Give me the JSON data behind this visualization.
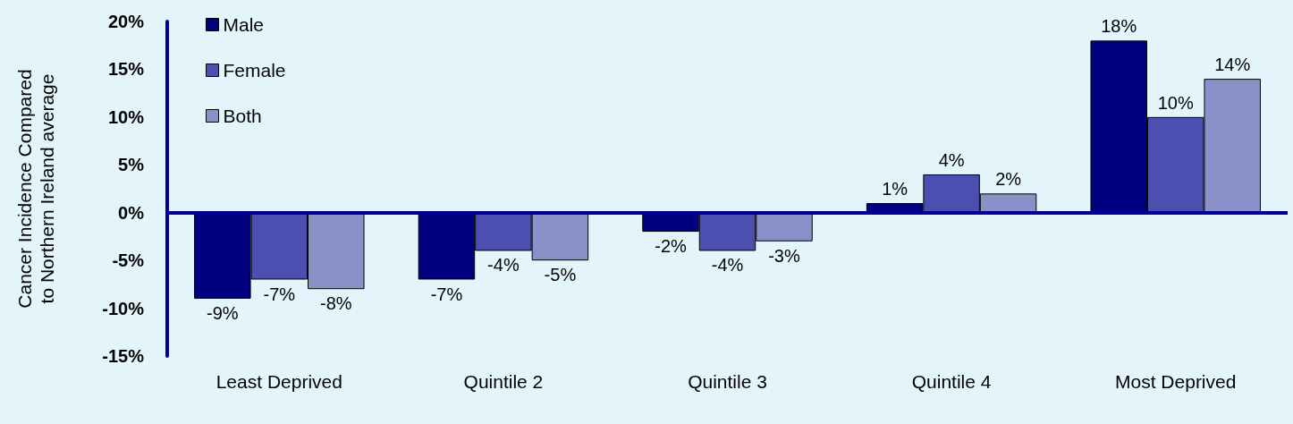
{
  "chart_data": {
    "type": "bar",
    "ylabel": "Cancer Incidence Compared to Northern Ireland average",
    "categories": [
      "Least Deprived",
      "Quintile 2",
      "Quintile 3",
      "Quintile 4",
      "Most Deprived"
    ],
    "series": [
      {
        "name": "Male",
        "color": "#000080",
        "values": [
          -9,
          -7,
          -2,
          1,
          18
        ],
        "value_labels": [
          "-9%",
          "-7%",
          "-2%",
          "1%",
          "18%"
        ]
      },
      {
        "name": "Female",
        "color": "#4b50b0",
        "values": [
          -7,
          -4,
          -4,
          4,
          10
        ],
        "value_labels": [
          "-7%",
          "-4%",
          "-4%",
          "4%",
          "10%"
        ]
      },
      {
        "name": "Both",
        "color": "#8a90c8",
        "values": [
          -8,
          -5,
          -3,
          2,
          14
        ],
        "value_labels": [
          "-8%",
          "-5%",
          "-3%",
          "2%",
          "14%"
        ]
      }
    ],
    "ylim": [
      -15,
      20
    ],
    "yticks": [
      {
        "value": -15,
        "label": "-15%"
      },
      {
        "value": -10,
        "label": "-10%"
      },
      {
        "value": -5,
        "label": "-5%"
      },
      {
        "value": 0,
        "label": "0%"
      },
      {
        "value": 5,
        "label": "5%"
      },
      {
        "value": 10,
        "label": "10%"
      },
      {
        "value": 15,
        "label": "15%"
      },
      {
        "value": 20,
        "label": "20%"
      }
    ],
    "ref_lines": [
      {
        "axis": "y",
        "value": 0,
        "color": "#000099"
      }
    ],
    "grid": false,
    "legend": "top left"
  }
}
